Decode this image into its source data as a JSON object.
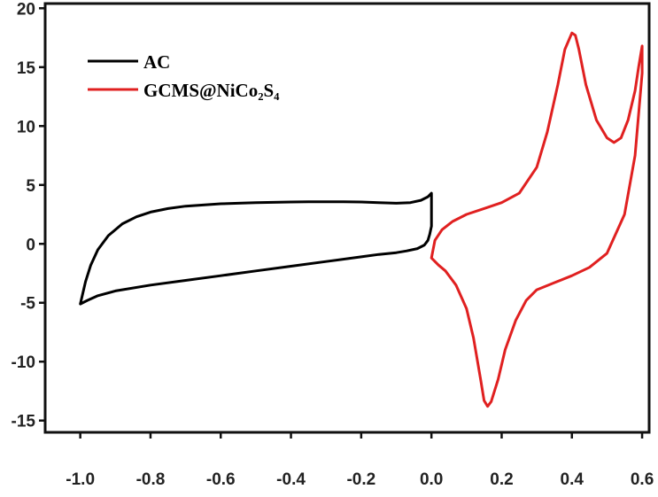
{
  "chart_data": {
    "type": "line",
    "title": "",
    "xlabel": "",
    "ylabel": "",
    "xlim": [
      -1.1,
      0.62
    ],
    "ylim": [
      -16,
      20.4
    ],
    "x_ticks": [
      -1.0,
      -0.8,
      -0.6,
      -0.4,
      -0.2,
      0.0,
      0.2,
      0.4,
      0.6
    ],
    "x_tick_labels": [
      "-1.0",
      "-0.8",
      "-0.6",
      "-0.4",
      "-0.2",
      "0.0",
      "0.2",
      "0.4",
      "0.6"
    ],
    "y_ticks": [
      20,
      15,
      10,
      5,
      0,
      -5,
      -10,
      -15
    ],
    "y_tick_labels": [
      "20",
      "15",
      "10",
      "5",
      "0",
      "-5",
      "-10",
      "-15"
    ],
    "grid": false,
    "legend_position": "top-left",
    "series": [
      {
        "name": "AC",
        "color": "#000000",
        "x": [
          -1.0,
          -0.985,
          -0.97,
          -0.95,
          -0.92,
          -0.88,
          -0.84,
          -0.8,
          -0.75,
          -0.7,
          -0.65,
          -0.6,
          -0.55,
          -0.5,
          -0.45,
          -0.4,
          -0.35,
          -0.3,
          -0.25,
          -0.2,
          -0.15,
          -0.1,
          -0.06,
          -0.03,
          -0.01,
          0.0,
          0.0,
          -0.005,
          -0.01,
          -0.02,
          -0.04,
          -0.07,
          -0.1,
          -0.15,
          -0.2,
          -0.3,
          -0.4,
          -0.5,
          -0.6,
          -0.7,
          -0.8,
          -0.9,
          -0.95,
          -0.98,
          -1.0
        ],
        "y": [
          -5.1,
          -3.2,
          -1.8,
          -0.5,
          0.7,
          1.7,
          2.3,
          2.7,
          3.0,
          3.2,
          3.3,
          3.4,
          3.45,
          3.5,
          3.52,
          3.55,
          3.57,
          3.58,
          3.58,
          3.55,
          3.5,
          3.45,
          3.5,
          3.7,
          4.0,
          4.3,
          1.5,
          0.8,
          0.3,
          -0.1,
          -0.4,
          -0.6,
          -0.75,
          -0.9,
          -1.1,
          -1.5,
          -1.9,
          -2.3,
          -2.7,
          -3.1,
          -3.5,
          -4.0,
          -4.4,
          -4.8,
          -5.1
        ]
      },
      {
        "name": "GCMS@NiCo₂S₄",
        "color": "#e02020",
        "x": [
          0.0,
          0.01,
          0.03,
          0.06,
          0.1,
          0.15,
          0.2,
          0.25,
          0.3,
          0.33,
          0.36,
          0.38,
          0.4,
          0.41,
          0.42,
          0.44,
          0.47,
          0.5,
          0.52,
          0.54,
          0.56,
          0.58,
          0.59,
          0.6,
          0.6,
          0.58,
          0.55,
          0.5,
          0.45,
          0.4,
          0.35,
          0.3,
          0.27,
          0.24,
          0.21,
          0.19,
          0.17,
          0.16,
          0.15,
          0.14,
          0.12,
          0.1,
          0.07,
          0.04,
          0.02,
          0.0
        ],
        "y": [
          -1.2,
          0.3,
          1.2,
          1.9,
          2.5,
          3.0,
          3.5,
          4.3,
          6.5,
          9.5,
          13.5,
          16.5,
          17.9,
          17.7,
          16.5,
          13.5,
          10.5,
          9.0,
          8.6,
          9.0,
          10.5,
          13.0,
          15.0,
          16.8,
          14.5,
          7.5,
          2.5,
          -0.8,
          -2.0,
          -2.7,
          -3.3,
          -3.9,
          -4.8,
          -6.5,
          -9.0,
          -11.5,
          -13.4,
          -13.8,
          -13.3,
          -11.5,
          -8.0,
          -5.5,
          -3.5,
          -2.3,
          -1.8,
          -1.2
        ]
      }
    ]
  }
}
